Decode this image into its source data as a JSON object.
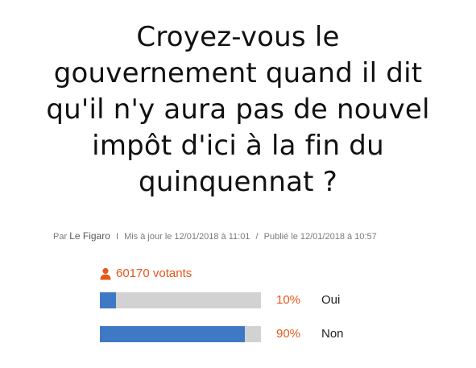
{
  "question": {
    "lines": [
      "Croyez-vous le",
      "gouvernement quand il dit",
      "qu'il n'y aura pas de nouvel",
      "impôt d'ici à la fin du",
      "quinquennat ?"
    ]
  },
  "meta": {
    "par_label": "Par",
    "author": "Le Figaro",
    "separator1": "I",
    "updated": "Mis à jour le 12/01/2018 à 11:01",
    "separator2": "/",
    "published": "Publié le 12/01/2018 à 10:57"
  },
  "poll": {
    "voters_text": "60170 votants",
    "voters_icon": "user-icon",
    "accent_color": "#e8561b",
    "bar_color": "#3e79c6",
    "track_color": "#d2d2d2",
    "options": [
      {
        "percent_text": "10%",
        "percent": 10,
        "label": "Oui"
      },
      {
        "percent_text": "90%",
        "percent": 90,
        "label": "Non"
      }
    ]
  }
}
